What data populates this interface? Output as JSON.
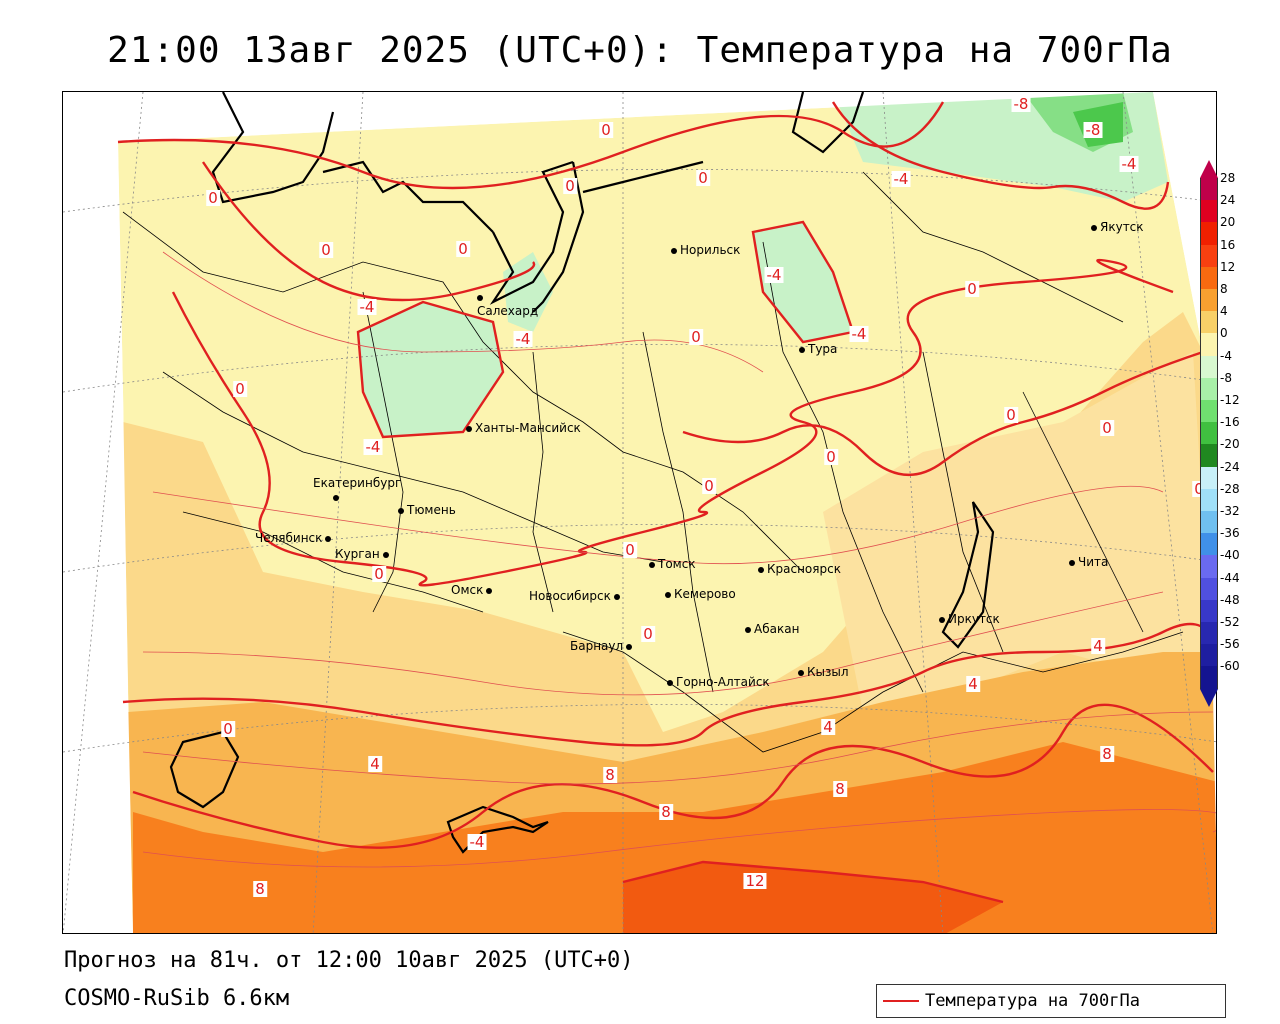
{
  "title": "21:00 13авг 2025 (UTC+0): Температура на 700гПа",
  "forecast_line": "Прогноз на 81ч. от 12:00 10авг 2025 (UTC+0)",
  "model_line": "COSMO-RuSib 6.6км",
  "legend": {
    "label": "Температура на 700гПа",
    "line_color": "#e02020"
  },
  "cities": [
    {
      "name": "Норильск"
    },
    {
      "name": "Якутск"
    },
    {
      "name": "Салехард"
    },
    {
      "name": "Тура"
    },
    {
      "name": "Ханты-Мансийск"
    },
    {
      "name": "Екатеринбург"
    },
    {
      "name": "Тюмень"
    },
    {
      "name": "Челябинск"
    },
    {
      "name": "Курган"
    },
    {
      "name": "Томск"
    },
    {
      "name": "Красноярск"
    },
    {
      "name": "Омск"
    },
    {
      "name": "Новосибирск"
    },
    {
      "name": "Кемерово"
    },
    {
      "name": "Барнаул"
    },
    {
      "name": "Абакан"
    },
    {
      "name": "Иркутск"
    },
    {
      "name": "Чита"
    },
    {
      "name": "Горно-Алтайск"
    },
    {
      "name": "Кызыл"
    }
  ],
  "isotherm_labels": [
    "-8",
    "-8",
    "0",
    "0",
    "-4",
    "-4",
    "0",
    "0",
    "-4",
    "-4",
    "0",
    "-4",
    "0",
    "0",
    "-4",
    "0",
    "0",
    "0",
    "0",
    "0",
    "0",
    "0",
    "-4",
    "0",
    "0",
    "0",
    "4",
    "4",
    "4",
    "4",
    "8",
    "8",
    "8",
    "8",
    "12",
    "0",
    "8",
    "-4"
  ],
  "color_scale": {
    "ticks": [
      "28",
      "24",
      "20",
      "16",
      "12",
      "8",
      "4",
      "0",
      "-4",
      "-8",
      "-12",
      "-16",
      "-20",
      "-24",
      "-28",
      "-32",
      "-36",
      "-40",
      "-44",
      "-48",
      "-52",
      "-56",
      "-60"
    ],
    "colors": [
      "#c0004a",
      "#e00020",
      "#f02000",
      "#f84010",
      "#f86a10",
      "#f8a030",
      "#f8d068",
      "#fcf4b0",
      "#d8f8d0",
      "#a8f0a8",
      "#70e070",
      "#40c040",
      "#208820",
      "#c8f0f8",
      "#a0e0f8",
      "#70c0f0",
      "#4090e8",
      "#6a6af0",
      "#5050e0",
      "#3838c8",
      "#2828b0",
      "#1e1ea0",
      "#141490"
    ]
  }
}
